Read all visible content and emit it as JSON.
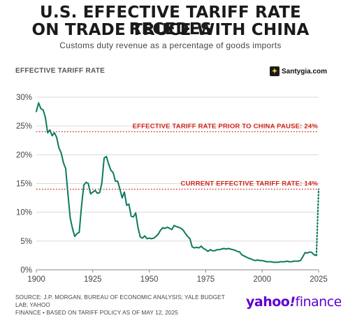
{
  "header": {
    "title_line1": "U.S. EFFECTIVE TARIFF RATE RECEDES",
    "title_line2": "ON TRADE TRUCE WITH CHINA",
    "subtitle": "Customs duty revenue as a percentage of goods imports"
  },
  "watermark": {
    "text": "Santygia.com"
  },
  "footer": {
    "source_line1": "SOURCE: J.P. MORGAN, BUREAU OF ECONOMIC ANALYSIS; YALE BUDGET LAB; YAHOO",
    "source_line2": "FINANCE • BASED ON TARIFF POLICY AS OF MAY 12, 2025",
    "logo_yahoo": "yahoo",
    "logo_bang": "!",
    "logo_finance": "finance",
    "logo_color": "#6001d2"
  },
  "colors": {
    "line": "#0b7a5e",
    "reference": "#d0261c",
    "grid": "#d9d9d9"
  },
  "chart_data": {
    "type": "line",
    "ylabel": "EFFECTIVE TARIFF RATE",
    "xlim": [
      1900,
      2025
    ],
    "ylim": [
      0,
      30
    ],
    "x_ticks": [
      "1900",
      "1925",
      "1950",
      "1975",
      "2000",
      "2025"
    ],
    "y_ticks": [
      "0%",
      "5%",
      "10%",
      "15%",
      "20%",
      "25%",
      "30%"
    ],
    "grid": "horizontal",
    "series": [
      {
        "x": [
          1900,
          1901,
          1902,
          1903,
          1904,
          1905,
          1906,
          1907,
          1908,
          1909,
          1910,
          1911,
          1912,
          1913,
          1914,
          1915,
          1916,
          1917,
          1918,
          1919,
          1920,
          1921,
          1922,
          1923,
          1924,
          1925,
          1926,
          1927,
          1928,
          1929,
          1930,
          1931,
          1932,
          1933,
          1934,
          1935,
          1936,
          1937,
          1938,
          1939,
          1940,
          1941,
          1942,
          1943,
          1944,
          1945,
          1946,
          1947,
          1948,
          1949,
          1950,
          1951,
          1952,
          1953,
          1954,
          1955,
          1956,
          1957,
          1958,
          1959,
          1960,
          1961,
          1962,
          1963,
          1964,
          1965,
          1966,
          1967,
          1968,
          1969,
          1970,
          1971,
          1972,
          1973,
          1974,
          1975,
          1976,
          1977,
          1978,
          1979,
          1980,
          1981,
          1982,
          1983,
          1984,
          1985,
          1986,
          1987,
          1988,
          1989,
          1990,
          1991,
          1992,
          1993,
          1994,
          1995,
          1996,
          1997,
          1998,
          1999,
          2000,
          2001,
          2002,
          2003,
          2004,
          2005,
          2006,
          2007,
          2008,
          2009,
          2010,
          2011,
          2012,
          2013,
          2014,
          2015,
          2016,
          2017,
          2018,
          2019,
          2020,
          2021,
          2022,
          2023,
          2024
        ],
        "values": [
          27.5,
          29.0,
          28.0,
          27.8,
          26.5,
          23.8,
          24.3,
          23.3,
          23.8,
          23.0,
          21.2,
          20.3,
          18.6,
          17.6,
          13.2,
          9.0,
          7.2,
          5.8,
          6.3,
          6.5,
          11.0,
          14.7,
          15.2,
          15.0,
          13.2,
          13.5,
          13.8,
          13.3,
          13.4,
          15.0,
          19.4,
          19.7,
          18.4,
          17.3,
          16.9,
          15.4,
          15.4,
          14.0,
          12.5,
          13.5,
          11.2,
          11.4,
          9.3,
          9.2,
          9.9,
          7.4,
          5.7,
          5.5,
          5.9,
          5.4,
          5.5,
          5.4,
          5.5,
          5.8,
          6.2,
          6.9,
          7.3,
          7.2,
          7.4,
          7.2,
          7.0,
          7.7,
          7.5,
          7.4,
          7.2,
          6.9,
          6.3,
          5.8,
          5.4,
          4.0,
          3.8,
          3.9,
          3.8,
          4.1,
          3.7,
          3.5,
          3.2,
          3.5,
          3.3,
          3.3,
          3.5,
          3.5,
          3.6,
          3.7,
          3.6,
          3.7,
          3.6,
          3.5,
          3.4,
          3.2,
          3.1,
          2.6,
          2.4,
          2.2,
          2.0,
          1.9,
          1.7,
          1.6,
          1.7,
          1.6,
          1.6,
          1.5,
          1.4,
          1.4,
          1.4,
          1.3,
          1.3,
          1.3,
          1.4,
          1.4,
          1.4,
          1.5,
          1.4,
          1.4,
          1.5,
          1.5,
          1.5,
          1.6,
          2.3,
          3.0,
          2.9,
          3.1,
          3.0,
          2.6,
          2.5
        ]
      },
      {
        "name": "projection",
        "style": "dotted",
        "x": [
          2024,
          2025
        ],
        "values": [
          2.5,
          14
        ]
      }
    ],
    "reference_lines": [
      {
        "y": 24,
        "label": "EFFECTIVE TARIFF RATE PRIOR TO CHINA PAUSE: 24%"
      },
      {
        "y": 14,
        "label": "CURRENT EFFECTIVE TARIFF RATE: 14%"
      }
    ]
  }
}
